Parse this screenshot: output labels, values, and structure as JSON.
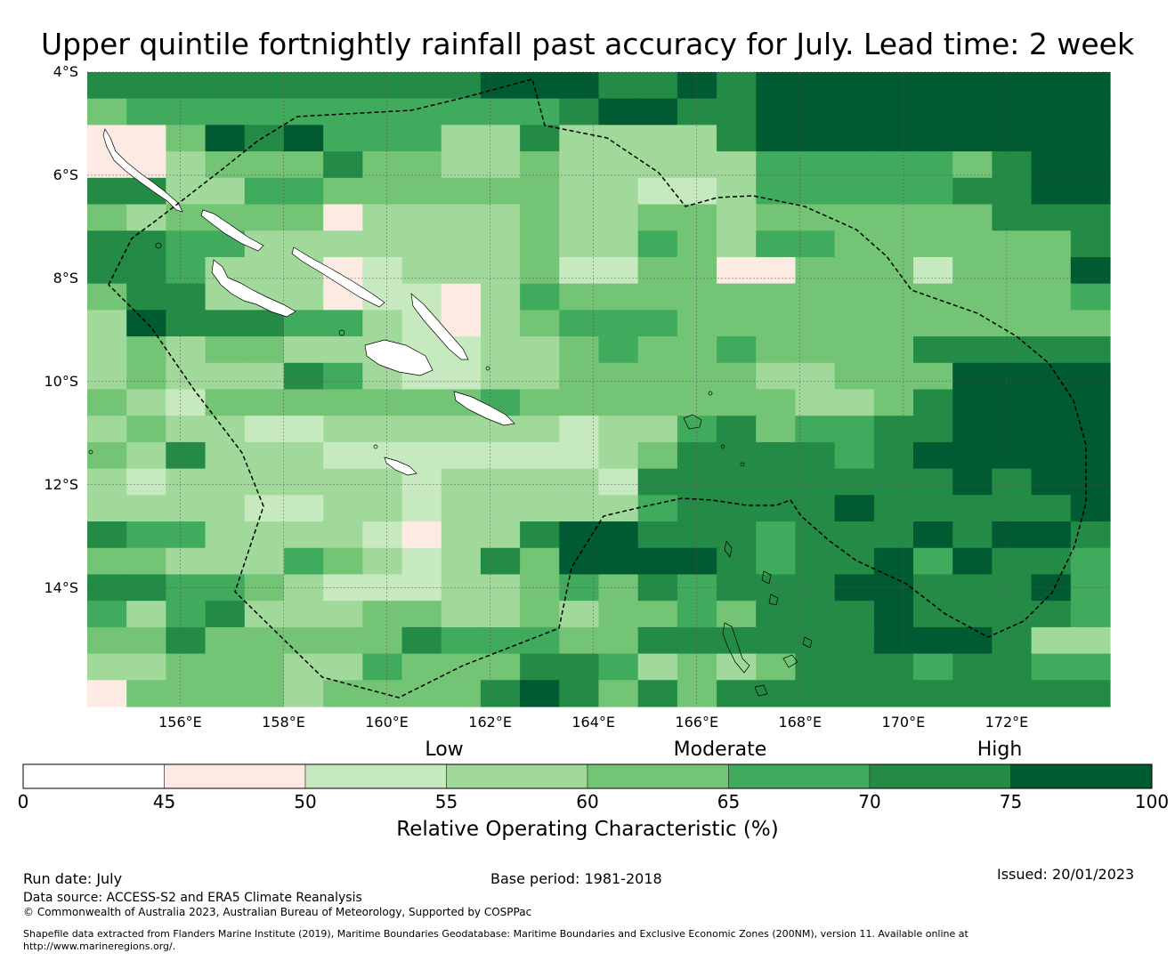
{
  "title": "Upper quintile fortnightly rainfall past accuracy for July. Lead time: 2 week",
  "map": {
    "lat_labels": [
      "4°S",
      "6°S",
      "8°S",
      "10°S",
      "12°S",
      "14°S"
    ],
    "lon_labels": [
      "156°E",
      "158°E",
      "160°E",
      "162°E",
      "164°E",
      "166°E",
      "168°E",
      "170°E",
      "172°E"
    ],
    "lon_range": [
      154.2,
      174.0
    ],
    "lat_range": [
      -16.3,
      -4.0
    ],
    "grid_cell_deg": 0.83,
    "grid_values": [
      [
        70,
        70,
        70,
        70,
        70,
        70,
        70,
        70,
        70,
        70,
        75,
        75,
        80,
        70,
        70,
        80,
        70,
        80,
        75,
        80,
        80,
        80,
        80,
        80,
        80,
        80
      ],
      [
        60,
        65,
        65,
        65,
        65,
        65,
        65,
        65,
        65,
        65,
        65,
        65,
        70,
        75,
        75,
        70,
        70,
        75,
        75,
        75,
        80,
        80,
        75,
        80,
        80,
        80
      ],
      [
        45,
        45,
        60,
        75,
        70,
        75,
        65,
        65,
        65,
        55,
        55,
        70,
        55,
        55,
        55,
        55,
        70,
        75,
        75,
        75,
        75,
        75,
        75,
        80,
        80,
        80
      ],
      [
        45,
        45,
        55,
        60,
        60,
        60,
        70,
        60,
        60,
        55,
        55,
        60,
        55,
        55,
        55,
        55,
        55,
        65,
        65,
        65,
        65,
        65,
        60,
        70,
        75,
        75
      ],
      [
        70,
        70,
        55,
        55,
        65,
        65,
        60,
        60,
        60,
        60,
        60,
        60,
        55,
        55,
        50,
        50,
        55,
        65,
        65,
        65,
        65,
        65,
        70,
        70,
        75,
        75
      ],
      [
        60,
        55,
        60,
        60,
        60,
        60,
        45,
        55,
        55,
        55,
        55,
        60,
        55,
        55,
        60,
        60,
        55,
        60,
        60,
        60,
        60,
        60,
        60,
        70,
        70,
        70
      ],
      [
        70,
        70,
        65,
        65,
        55,
        55,
        55,
        55,
        55,
        55,
        55,
        60,
        55,
        55,
        65,
        60,
        55,
        65,
        65,
        60,
        60,
        60,
        60,
        60,
        60,
        70
      ],
      [
        70,
        70,
        65,
        55,
        55,
        55,
        45,
        50,
        55,
        55,
        55,
        60,
        50,
        50,
        60,
        60,
        45,
        45,
        60,
        60,
        60,
        50,
        60,
        60,
        60,
        75
      ],
      [
        60,
        70,
        70,
        55,
        55,
        55,
        45,
        50,
        50,
        45,
        55,
        65,
        60,
        60,
        60,
        60,
        60,
        60,
        60,
        60,
        60,
        60,
        60,
        60,
        60,
        65
      ],
      [
        55,
        75,
        70,
        70,
        70,
        65,
        65,
        55,
        50,
        45,
        55,
        60,
        65,
        65,
        65,
        60,
        60,
        60,
        60,
        60,
        60,
        60,
        60,
        60,
        60,
        60
      ],
      [
        55,
        60,
        55,
        60,
        60,
        55,
        55,
        55,
        50,
        50,
        55,
        55,
        60,
        65,
        60,
        60,
        65,
        60,
        60,
        60,
        60,
        70,
        70,
        70,
        70,
        70
      ],
      [
        55,
        60,
        55,
        55,
        55,
        70,
        65,
        55,
        50,
        50,
        55,
        55,
        60,
        60,
        60,
        60,
        60,
        55,
        55,
        60,
        60,
        60,
        75,
        75,
        75,
        75
      ],
      [
        60,
        55,
        50,
        60,
        60,
        60,
        60,
        60,
        60,
        60,
        65,
        60,
        60,
        60,
        60,
        60,
        60,
        60,
        55,
        55,
        60,
        70,
        75,
        75,
        80,
        75
      ],
      [
        55,
        60,
        55,
        55,
        50,
        50,
        55,
        55,
        55,
        55,
        55,
        55,
        50,
        55,
        55,
        65,
        70,
        60,
        65,
        65,
        70,
        70,
        75,
        75,
        75,
        75
      ],
      [
        60,
        55,
        70,
        55,
        55,
        55,
        50,
        50,
        50,
        50,
        50,
        50,
        50,
        55,
        60,
        70,
        70,
        70,
        70,
        65,
        70,
        80,
        75,
        75,
        75,
        80
      ],
      [
        55,
        50,
        55,
        55,
        55,
        55,
        55,
        55,
        50,
        55,
        55,
        55,
        55,
        50,
        70,
        70,
        70,
        70,
        70,
        70,
        70,
        70,
        80,
        70,
        80,
        80
      ],
      [
        55,
        55,
        55,
        55,
        50,
        50,
        55,
        55,
        50,
        55,
        55,
        55,
        55,
        55,
        65,
        70,
        70,
        70,
        70,
        75,
        70,
        70,
        70,
        70,
        70,
        80
      ],
      [
        70,
        65,
        65,
        55,
        55,
        55,
        55,
        50,
        45,
        55,
        55,
        70,
        75,
        75,
        70,
        70,
        70,
        65,
        70,
        70,
        70,
        75,
        70,
        75,
        75,
        70
      ],
      [
        60,
        60,
        55,
        55,
        55,
        65,
        60,
        55,
        50,
        55,
        70,
        60,
        75,
        75,
        75,
        75,
        70,
        65,
        70,
        70,
        75,
        65,
        75,
        70,
        70,
        65
      ],
      [
        70,
        70,
        65,
        65,
        60,
        55,
        50,
        50,
        50,
        55,
        55,
        60,
        65,
        60,
        70,
        65,
        70,
        70,
        70,
        75,
        75,
        70,
        70,
        70,
        75,
        65
      ],
      [
        65,
        55,
        65,
        70,
        55,
        55,
        55,
        60,
        60,
        55,
        55,
        60,
        55,
        60,
        60,
        65,
        60,
        70,
        70,
        70,
        75,
        70,
        70,
        70,
        70,
        65
      ],
      [
        60,
        60,
        70,
        60,
        60,
        60,
        60,
        60,
        70,
        65,
        65,
        65,
        60,
        60,
        70,
        70,
        70,
        70,
        70,
        70,
        75,
        75,
        75,
        70,
        55,
        55
      ],
      [
        55,
        55,
        60,
        60,
        60,
        55,
        55,
        65,
        60,
        60,
        60,
        70,
        70,
        65,
        55,
        60,
        55,
        60,
        70,
        70,
        70,
        65,
        70,
        70,
        65,
        65
      ],
      [
        45,
        60,
        60,
        60,
        60,
        55,
        60,
        60,
        60,
        60,
        70,
        75,
        70,
        60,
        70,
        60,
        70,
        70,
        70,
        70,
        70,
        70,
        70,
        70,
        70,
        70
      ]
    ]
  },
  "colorbar": {
    "category_labels": [
      "Low",
      "Moderate",
      "High"
    ],
    "tick_labels": [
      "0",
      "45",
      "50",
      "55",
      "60",
      "65",
      "70",
      "75",
      "100"
    ],
    "bins": [
      {
        "from": 0,
        "to": 45,
        "color": "#ffffff"
      },
      {
        "from": 45,
        "to": 50,
        "color": "#fdeae2"
      },
      {
        "from": 50,
        "to": 55,
        "color": "#c7e9c0"
      },
      {
        "from": 55,
        "to": 60,
        "color": "#a1d99b"
      },
      {
        "from": 60,
        "to": 65,
        "color": "#74c476"
      },
      {
        "from": 65,
        "to": 70,
        "color": "#41ab5d"
      },
      {
        "from": 70,
        "to": 75,
        "color": "#238b45"
      },
      {
        "from": 75,
        "to": 100,
        "color": "#005a32"
      }
    ],
    "title": "Relative Operating Characteristic (%)"
  },
  "footer": {
    "run_date": "Run date: July",
    "base_period": "Base period: 1981-2018",
    "issued": "Issued: 20/01/2023",
    "data_source": "Data source: ACCESS-S2 and ERA5 Climate Reanalysis",
    "copyright": "© Commonwealth of Australia 2023, Australian Bureau of Meteorology, Supported by COSPPac",
    "shapefile": "Shapefile data extracted from Flanders Marine Institute (2019), Maritime Boundaries Geodatabase: Maritime Boundaries and Exclusive Economic Zones (200NM), version 11. Available online at http://www.marineregions.org/."
  }
}
